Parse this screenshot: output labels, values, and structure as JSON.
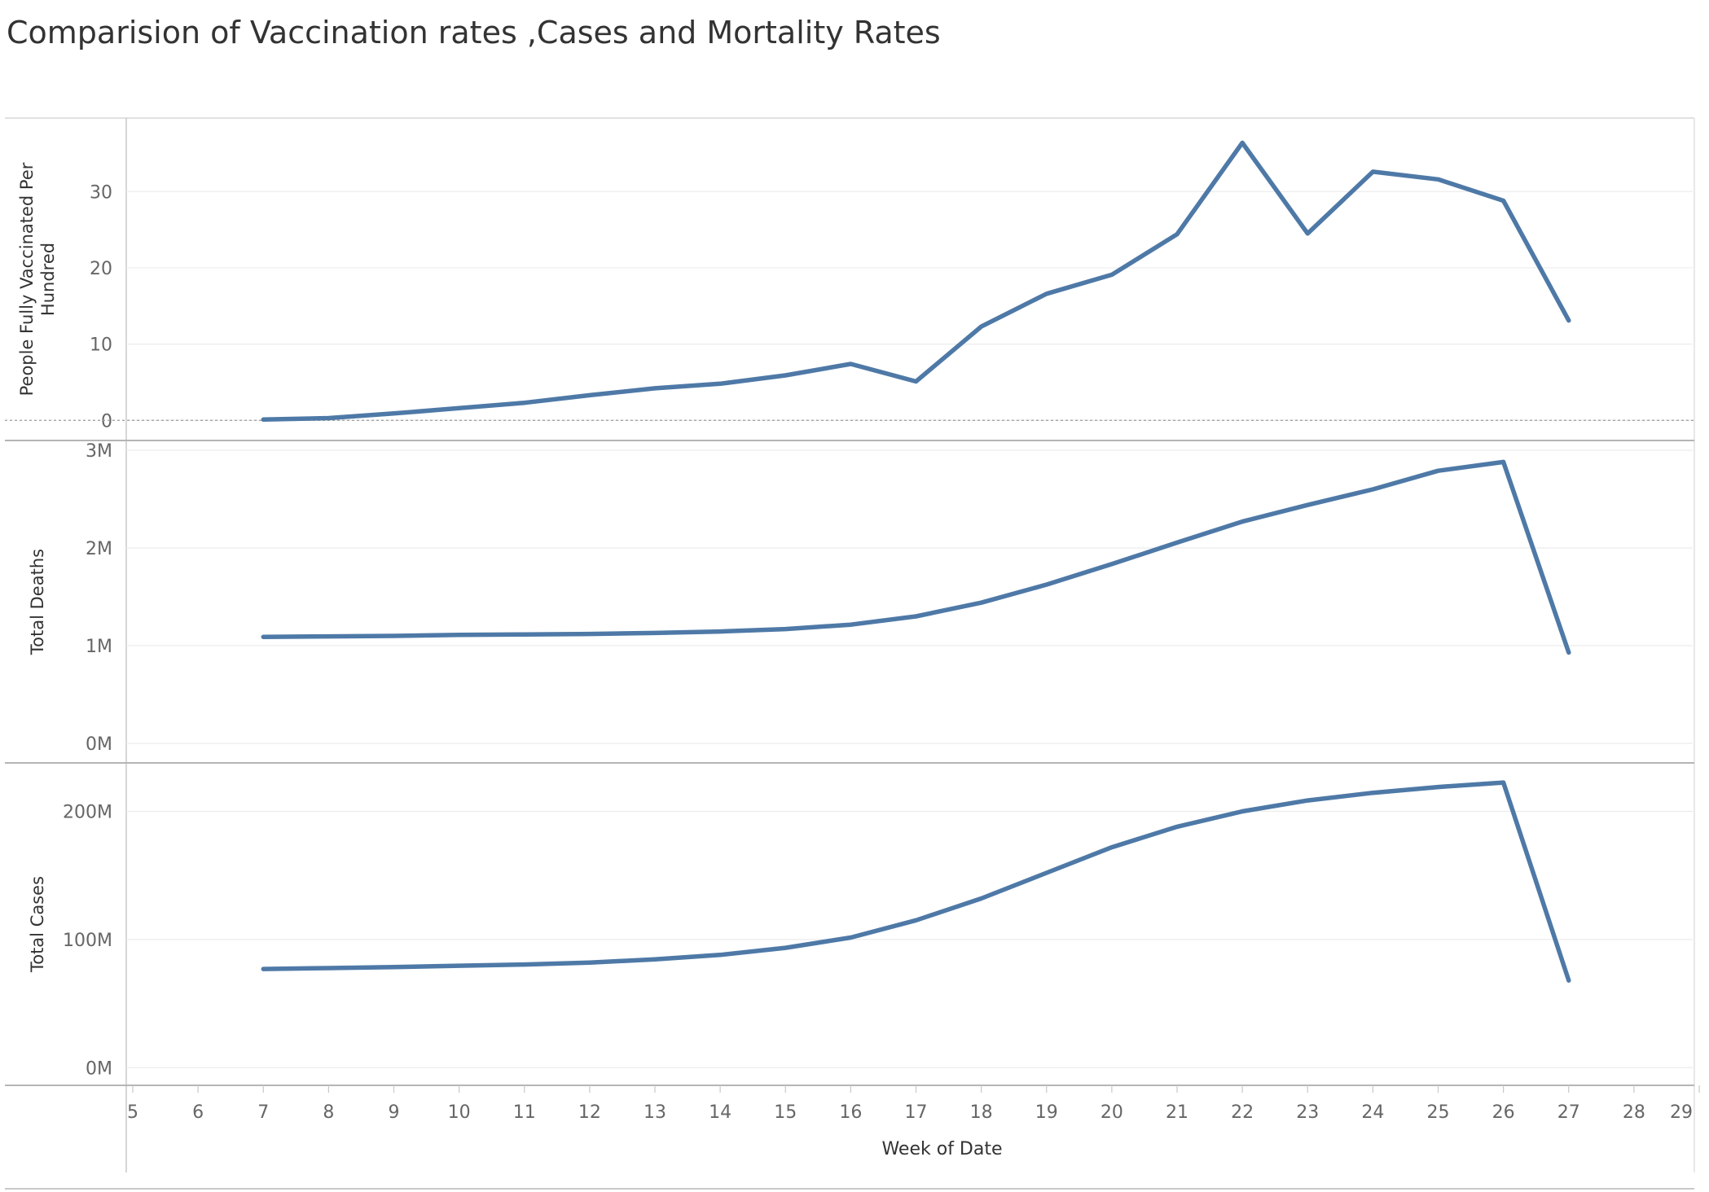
{
  "title": "Comparision of Vaccination rates ,Cases and Mortality Rates",
  "chart_data": {
    "type": "line",
    "title": "Comparision of Vaccination rates ,Cases and Mortality Rates",
    "xlabel": "Week of Date",
    "x_ticks": [
      5,
      6,
      7,
      8,
      9,
      10,
      11,
      12,
      13,
      14,
      15,
      16,
      17,
      18,
      19,
      20,
      21,
      22,
      23,
      24,
      25,
      26,
      27,
      28,
      29
    ],
    "xlim": [
      5,
      29
    ],
    "x": [
      7,
      8,
      9,
      10,
      11,
      12,
      13,
      14,
      15,
      16,
      17,
      18,
      19,
      20,
      21,
      22,
      23,
      24,
      25,
      26,
      27
    ],
    "grid": true,
    "line_color": "#4e79a7",
    "panels": [
      {
        "ylabel_lines": [
          "People Fully Vaccinated Per",
          "Hundred"
        ],
        "ylim": [
          -2,
          39
        ],
        "y_ticks": [
          {
            "value": 0,
            "label": "0"
          },
          {
            "value": 10,
            "label": "10"
          },
          {
            "value": 20,
            "label": "20"
          },
          {
            "value": 30,
            "label": "30"
          }
        ],
        "zero_line": true,
        "values": [
          0.1,
          0.3,
          0.9,
          1.6,
          2.3,
          3.3,
          4.2,
          4.8,
          5.9,
          7.4,
          5.1,
          12.3,
          16.6,
          19.1,
          24.4,
          36.4,
          24.5,
          32.6,
          31.6,
          28.8,
          13.1
        ]
      },
      {
        "ylabel_lines": [
          "Total Deaths"
        ],
        "ylim": [
          -0.15,
          3.05
        ],
        "y_ticks": [
          {
            "value": 0,
            "label": "0M"
          },
          {
            "value": 1,
            "label": "1M"
          },
          {
            "value": 2,
            "label": "2M"
          },
          {
            "value": 3,
            "label": "3M"
          }
        ],
        "zero_line": false,
        "values": [
          1.09,
          1.095,
          1.1,
          1.11,
          1.115,
          1.12,
          1.13,
          1.145,
          1.17,
          1.215,
          1.3,
          1.44,
          1.625,
          1.835,
          2.055,
          2.27,
          2.44,
          2.6,
          2.79,
          2.88,
          0.93
        ]
      },
      {
        "ylabel_lines": [
          "Total Cases"
        ],
        "ylim": [
          -10,
          234
        ],
        "y_ticks": [
          {
            "value": 0,
            "label": "0M"
          },
          {
            "value": 100,
            "label": "100M"
          },
          {
            "value": 200,
            "label": "200M"
          }
        ],
        "zero_line": false,
        "values": [
          77,
          77.7,
          78.5,
          79.5,
          80.5,
          82,
          84.5,
          88,
          93.5,
          101.5,
          115,
          132,
          152,
          172,
          188,
          200,
          208.5,
          214.5,
          219,
          222.5,
          68
        ]
      }
    ]
  }
}
